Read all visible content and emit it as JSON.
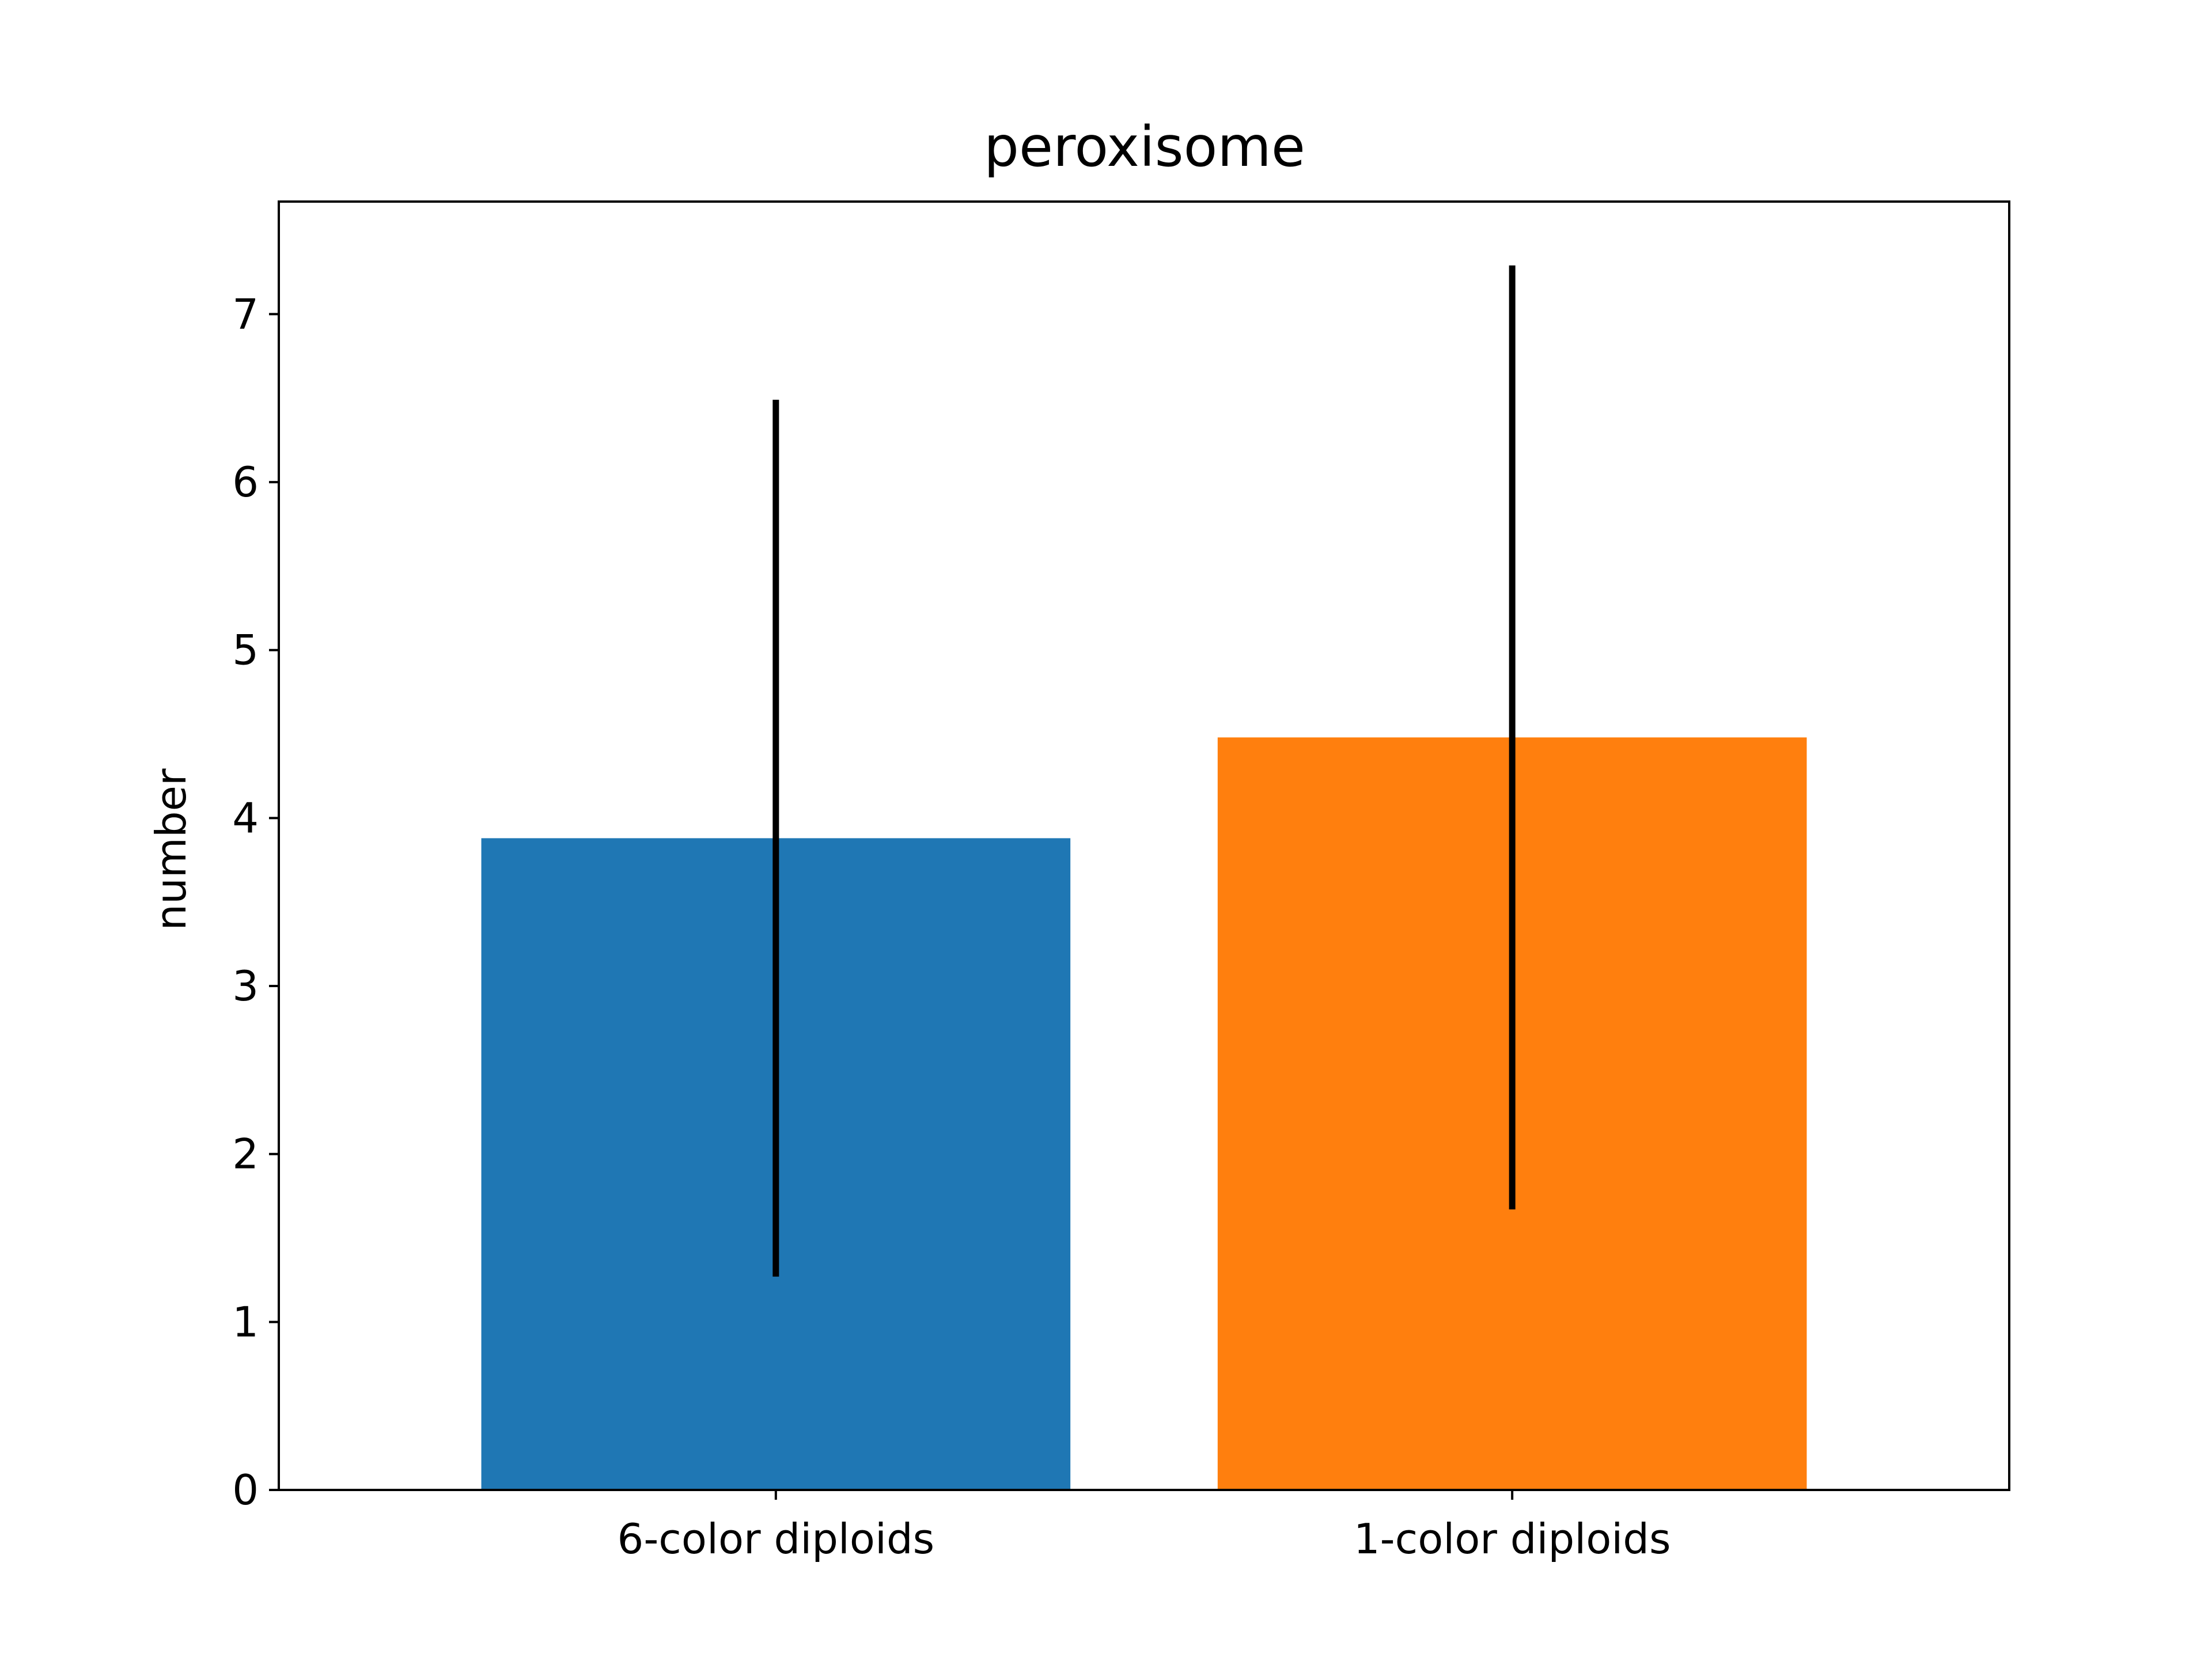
{
  "chart_data": {
    "type": "bar",
    "title": "peroxisome",
    "xlabel": "",
    "ylabel": "number",
    "categories": [
      "6-color diploids",
      "1-color diploids"
    ],
    "values": [
      3.88,
      4.48
    ],
    "error_bars": [
      {
        "low": 1.27,
        "high": 6.49
      },
      {
        "low": 1.67,
        "high": 7.29
      }
    ],
    "bar_colors": [
      "#1f77b4",
      "#ff7f0e"
    ],
    "error_bar_color": "#000000",
    "ylim": [
      0,
      7.67
    ],
    "yticks": [
      0,
      1,
      2,
      3,
      4,
      5,
      6,
      7
    ],
    "grid": false,
    "legend": "none"
  }
}
